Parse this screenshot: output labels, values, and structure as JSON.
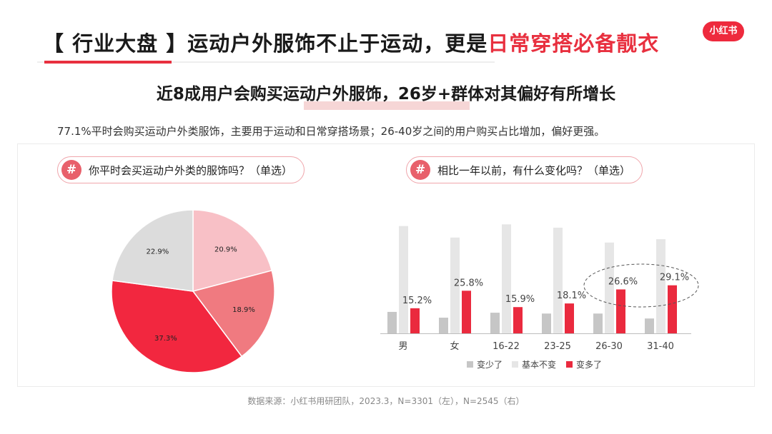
{
  "header": {
    "title_prefix": "【 行业大盘 】运动户外服饰不止于运动，更是",
    "title_highlight": "日常穿搭必备靓衣",
    "logo": "小红书",
    "subtitle": "近8成用户会购买运动户外服饰，26岁+群体对其偏好有所增长",
    "description": "77.1%平时会购买运动户外类服饰，主要用于运动和日常穿搭场景；26-40岁之间的用户购买占比增加，偏好更强。"
  },
  "left_panel": {
    "question": "你平时会买运动户外类的服饰吗？（单选）",
    "icon": "hash-icon"
  },
  "right_panel": {
    "question": "相比一年以前，有什么变化吗？（单选）",
    "icon": "hash-icon"
  },
  "source": "数据来源：小红书用研团队，2023.3，N=3301（左），N=2545（右）",
  "colors": {
    "accent": "#e8303f",
    "pie": [
      "#f8c0c6",
      "#f07a80",
      "#f2273f",
      "#dcdcdc"
    ],
    "dark_gray": "#c6c6c6",
    "light_gray": "#e6e6e6",
    "red": "#ea2a3e"
  },
  "chart_data": [
    {
      "type": "pie",
      "slices": [
        {
          "value": 20.9,
          "label": "20.9%"
        },
        {
          "value": 18.9,
          "label": "18.9%"
        },
        {
          "value": 37.3,
          "label": "37.3%"
        },
        {
          "value": 22.9,
          "label": "22.9%"
        }
      ]
    },
    {
      "type": "bar",
      "categories": [
        "男",
        "女",
        "16-22",
        "23-25",
        "26-30",
        "31-40"
      ],
      "series": [
        {
          "name": "变少了",
          "values": [
            13,
            9.5,
            12.5,
            12,
            12,
            9
          ]
        },
        {
          "name": "基本不变",
          "values": [
            65,
            58,
            66,
            64,
            55,
            57
          ]
        },
        {
          "name": "变多了",
          "values": [
            15.2,
            25.8,
            15.9,
            18.1,
            26.6,
            29.1
          ],
          "labels": [
            "15.2%",
            "25.8%",
            "15.9%",
            "18.1%",
            "26.6%",
            "29.1%"
          ]
        }
      ],
      "highlight_categories": [
        "26-30",
        "31-40"
      ]
    }
  ]
}
